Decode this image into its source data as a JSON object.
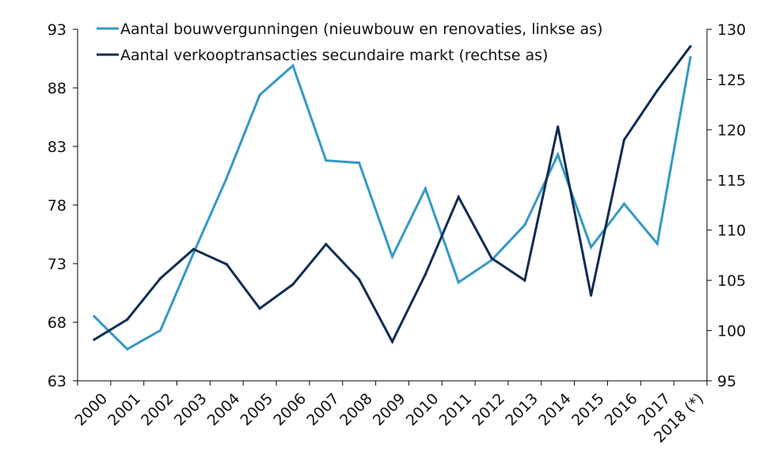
{
  "chart_data": {
    "type": "line",
    "categories": [
      "2000",
      "2001",
      "2002",
      "2003",
      "2004",
      "2005",
      "2006",
      "2007",
      "2008",
      "2009",
      "2010",
      "2011",
      "2012",
      "2013",
      "2014",
      "2015",
      "2016",
      "2017",
      "2018 (*)"
    ],
    "series": [
      {
        "name": "Aantal bouwvergunningen (nieuwbouw en renovaties, linkse as)",
        "axis": "left",
        "color": "#3399c6",
        "values": [
          68.5,
          65.7,
          67.3,
          73.9,
          80.3,
          87.4,
          89.9,
          81.8,
          81.6,
          73.6,
          79.4,
          71.4,
          73.3,
          76.3,
          82.3,
          74.4,
          78.1,
          74.7,
          90.6
        ]
      },
      {
        "name": "Aantal verkooptransacties secundaire markt (rechtse as)",
        "axis": "right",
        "color": "#0f2d52",
        "values": [
          99.1,
          101.1,
          105.2,
          108.1,
          106.6,
          102.2,
          104.6,
          108.6,
          105.1,
          98.9,
          105.6,
          113.3,
          107.2,
          105.0,
          120.3,
          103.5,
          119.0,
          123.9,
          128.3
        ]
      }
    ],
    "y_left": {
      "min": 63,
      "max": 93,
      "ticks": [
        "63",
        "68",
        "73",
        "78",
        "83",
        "88",
        "93"
      ]
    },
    "y_right": {
      "min": 95,
      "max": 130,
      "ticks": [
        "95",
        "100",
        "105",
        "110",
        "115",
        "120",
        "125",
        "130"
      ]
    },
    "legend_position": "top",
    "grid": false
  }
}
